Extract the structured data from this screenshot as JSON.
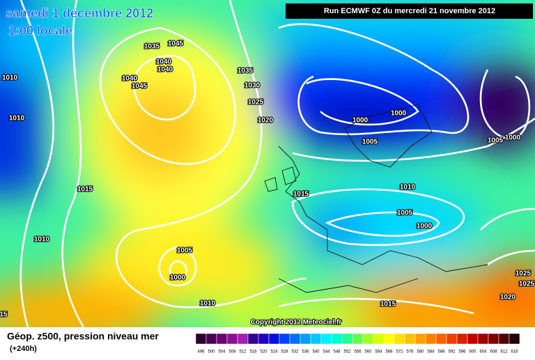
{
  "header": {
    "date": "samedi 1 décembre 2012",
    "time": "1:00 locale",
    "run": "Run ECMWF 0Z du mercredi 21 novembre 2012"
  },
  "map": {
    "isobar_labels": [
      "1035",
      "1045",
      "1040",
      "1040",
      "1040",
      "1045",
      "1035",
      "1030",
      "1025",
      "1020",
      "1010",
      "1010",
      "1015",
      "1010",
      "1005",
      "1000",
      "1010",
      "1015",
      "1015",
      "1000",
      "1000",
      "1005",
      "1005",
      "1000",
      "1010",
      "1005",
      "1000",
      "1025",
      "1025",
      "1020",
      "15"
    ],
    "copyright": "Copyright 2012 Meteociel.fr"
  },
  "footer": {
    "title": "Géop. z500, pression niveau mer",
    "lead": "(+240h)"
  },
  "legend": {
    "labels": [
      496,
      500,
      504,
      508,
      512,
      516,
      520,
      524,
      528,
      532,
      536,
      540,
      544,
      548,
      552,
      556,
      560,
      564,
      568,
      572,
      576,
      580,
      584,
      588,
      592,
      596,
      600,
      604,
      608,
      612,
      616
    ],
    "colors": [
      "#2a0030",
      "#4a0050",
      "#6a0070",
      "#8a1090",
      "#a020b0",
      "#300090",
      "#2000c0",
      "#0010e0",
      "#0040ff",
      "#0070ff",
      "#00a0ff",
      "#00c8ff",
      "#00f0ff",
      "#00ffd0",
      "#20ff90",
      "#60ff50",
      "#a0ff20",
      "#d8ff00",
      "#ffff00",
      "#ffe000",
      "#ffc000",
      "#ffa000",
      "#ff8000",
      "#ff6000",
      "#f04000",
      "#d82000",
      "#c00000",
      "#a00000",
      "#800000",
      "#500000",
      "#200000"
    ]
  }
}
